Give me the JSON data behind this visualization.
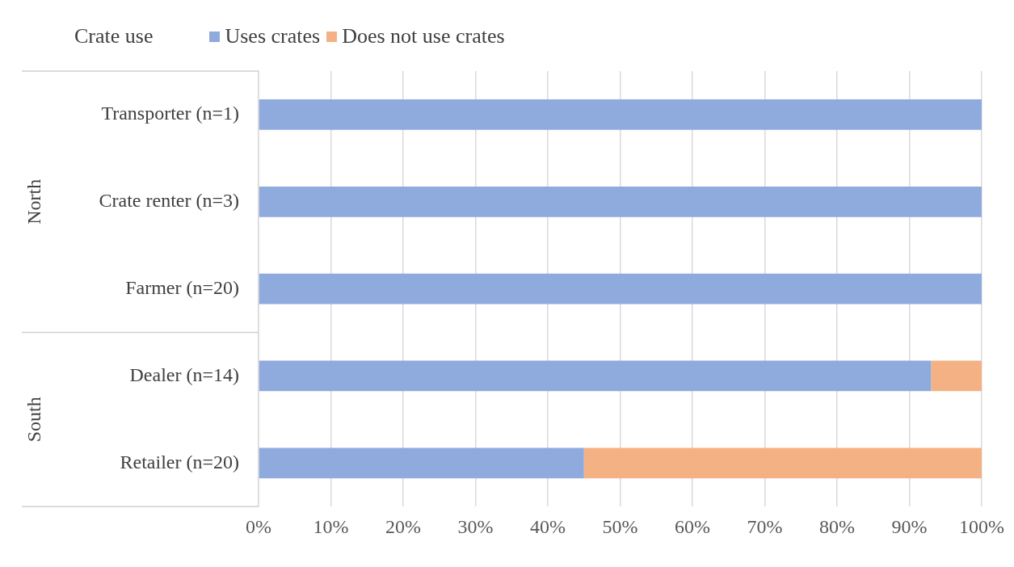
{
  "chart_data": {
    "type": "bar",
    "orientation": "horizontal",
    "stacked": true,
    "legend_title": "Crate use",
    "legend": "top left",
    "grid": "x",
    "categories": [
      "Transporter (n=1)",
      "Crate renter (n=3)",
      "Farmer (n=20)",
      "Dealer (n=14)",
      "Retailer (n=20)"
    ],
    "series": [
      {
        "name": "Uses crates",
        "color": "#8faadc",
        "values": [
          100,
          100,
          100,
          93,
          45
        ]
      },
      {
        "name": "Does not use crates",
        "color": "#f4b183",
        "values": [
          0,
          0,
          0,
          7,
          55
        ]
      }
    ],
    "xlim": [
      0,
      100
    ],
    "xticks": [
      {
        "value": 0,
        "label": "0%"
      },
      {
        "value": 10,
        "label": "10%"
      },
      {
        "value": 20,
        "label": "20%"
      },
      {
        "value": 30,
        "label": "30%"
      },
      {
        "value": 40,
        "label": "40%"
      },
      {
        "value": 50,
        "label": "50%"
      },
      {
        "value": 60,
        "label": "60%"
      },
      {
        "value": 70,
        "label": "70%"
      },
      {
        "value": 80,
        "label": "80%"
      },
      {
        "value": 90,
        "label": "90%"
      },
      {
        "value": 100,
        "label": "100%"
      }
    ],
    "annotations": [
      "North",
      "South"
    ]
  }
}
